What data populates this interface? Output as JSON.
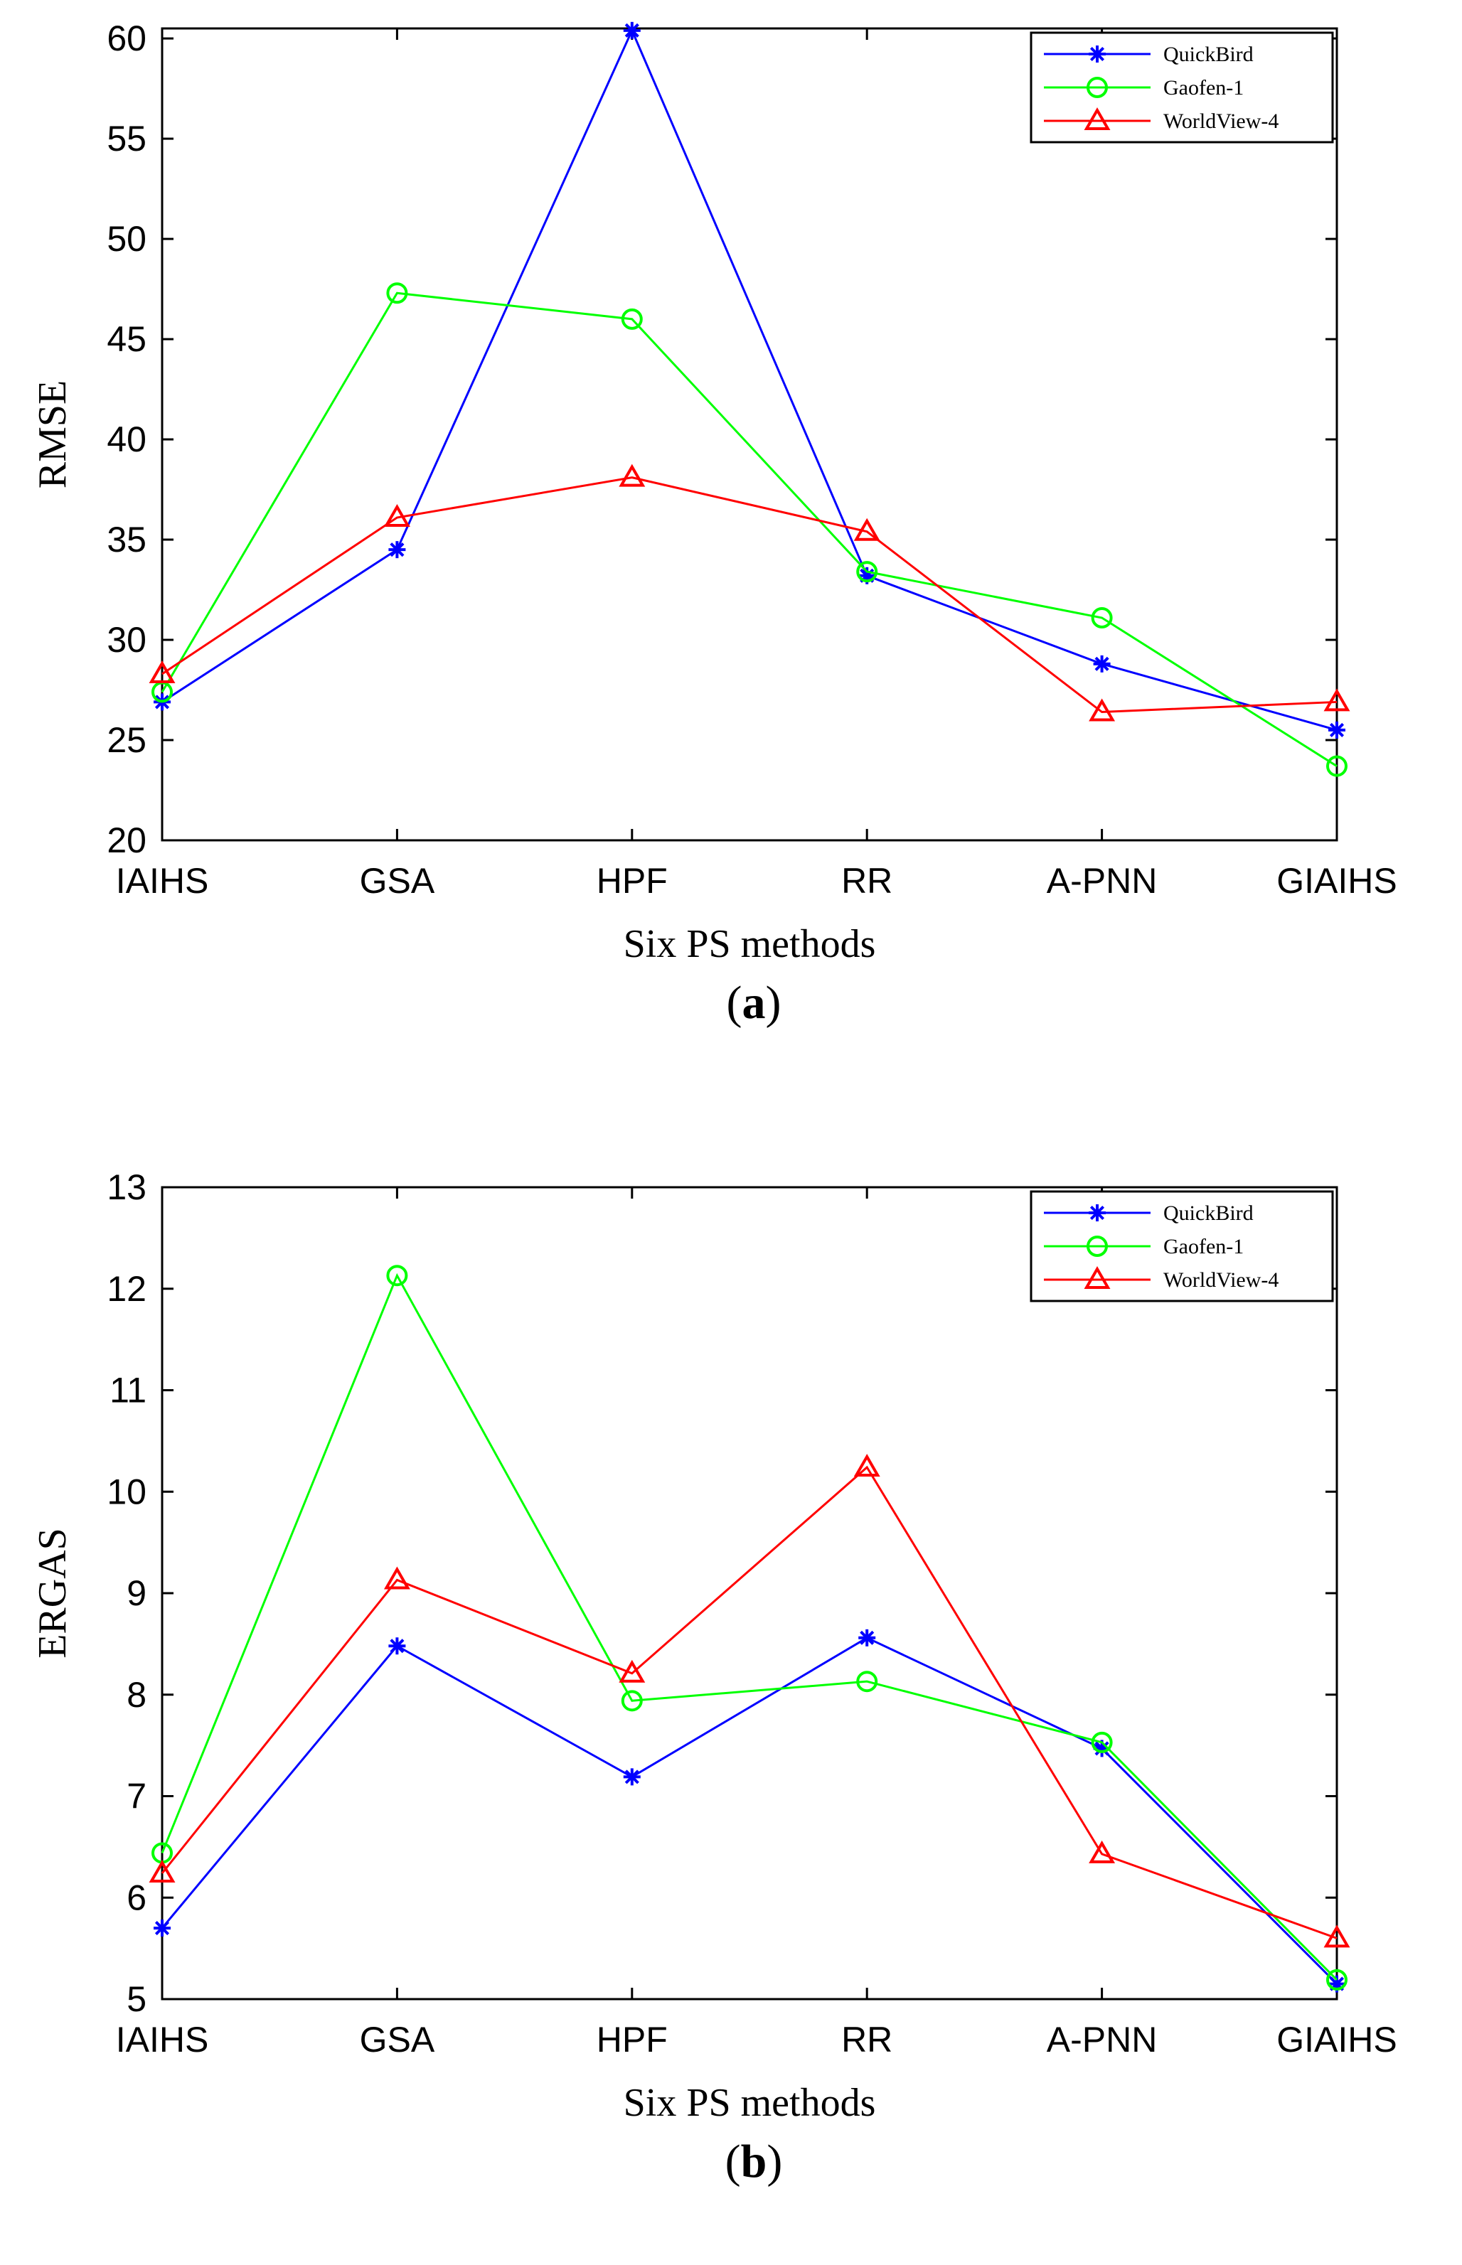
{
  "chart_data": [
    {
      "type": "line",
      "caption_letter": "a",
      "categories": [
        "IAIHS",
        "GSA",
        "HPF",
        "RR",
        "A-PNN",
        "GIAIHS"
      ],
      "xlabel": "Six PS methods",
      "ylabel": "RMSE",
      "ylim": [
        20,
        60.5
      ],
      "yticks": [
        20,
        25,
        30,
        35,
        40,
        45,
        50,
        55,
        60
      ],
      "legend_position": "top-right",
      "series": [
        {
          "name": "QuickBird",
          "color": "#0000ff",
          "marker": "asterisk",
          "values": [
            26.9,
            34.5,
            60.4,
            33.2,
            28.8,
            25.5
          ]
        },
        {
          "name": "Gaofen-1",
          "color": "#00ff00",
          "marker": "circle",
          "values": [
            27.4,
            47.3,
            46.0,
            33.4,
            31.1,
            23.7
          ]
        },
        {
          "name": "WorldView-4",
          "color": "#ff0000",
          "marker": "triangle",
          "values": [
            28.3,
            36.1,
            38.1,
            35.4,
            26.4,
            26.9
          ]
        }
      ]
    },
    {
      "type": "line",
      "caption_letter": "b",
      "categories": [
        "IAIHS",
        "GSA",
        "HPF",
        "RR",
        "A-PNN",
        "GIAIHS"
      ],
      "xlabel": "Six PS methods",
      "ylabel": "ERGAS",
      "ylim": [
        5,
        13
      ],
      "yticks": [
        5,
        6,
        7,
        8,
        9,
        10,
        11,
        12,
        13
      ],
      "legend_position": "top-right",
      "series": [
        {
          "name": "QuickBird",
          "color": "#0000ff",
          "marker": "asterisk",
          "values": [
            5.7,
            8.48,
            7.19,
            8.56,
            7.47,
            5.15
          ]
        },
        {
          "name": "Gaofen-1",
          "color": "#00ff00",
          "marker": "circle",
          "values": [
            6.44,
            12.13,
            7.94,
            8.13,
            7.53,
            5.19
          ]
        },
        {
          "name": "WorldView-4",
          "color": "#ff0000",
          "marker": "triangle",
          "values": [
            6.24,
            9.13,
            8.21,
            10.24,
            6.43,
            5.6
          ]
        }
      ]
    }
  ]
}
